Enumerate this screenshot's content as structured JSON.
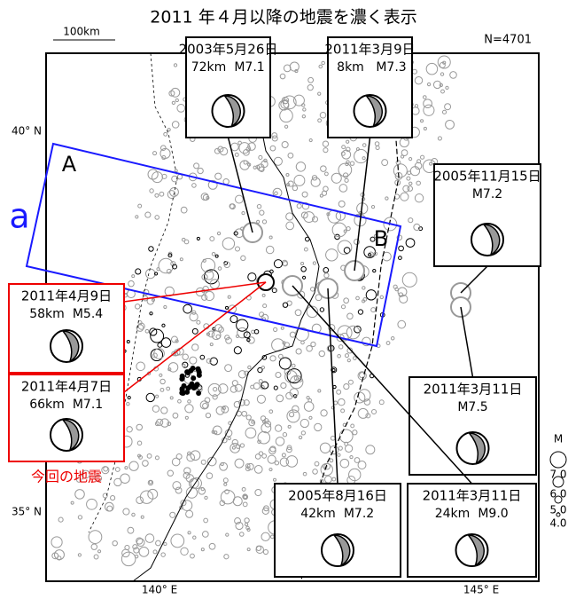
{
  "title": "2011 年４月以降の地震を濃く表示",
  "count": "N=4701",
  "scale": "100km",
  "axes": {
    "lat": [
      "40° N",
      "35° N"
    ],
    "lon": [
      "140° E",
      "145° E"
    ]
  },
  "profile": {
    "start": "A",
    "end": "B",
    "label": "a"
  },
  "events": [
    {
      "date": "2003年5月26日",
      "depth": "72km",
      "mag": "M7.1"
    },
    {
      "date": "2011年3月9日",
      "depth": "8km",
      "mag": "M7.3"
    },
    {
      "date": "2005年11月15日",
      "mag": "M7.2"
    },
    {
      "date": "2011年4月9日",
      "depth": "58km",
      "mag": "M5.4"
    },
    {
      "date": "2011年4月7日",
      "depth": "66km",
      "mag": "M7.1"
    },
    {
      "date": "2011年3月11日",
      "mag": "M7.5"
    },
    {
      "date": "2005年8月16日",
      "depth": "42km",
      "mag": "M7.2"
    },
    {
      "date": "2011年3月11日",
      "depth": "24km",
      "mag": "M9.0"
    }
  ],
  "current_label": "今回の地震",
  "legend": {
    "title": "M",
    "magnitudes": [
      "7.0",
      "6.0",
      "5.0",
      "4.0"
    ]
  }
}
